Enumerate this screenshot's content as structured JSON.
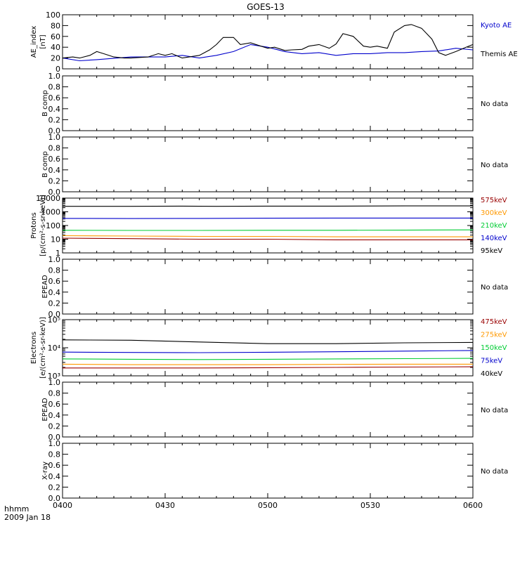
{
  "title": "GOES-13",
  "footer": {
    "label_hhmm": "hhmm",
    "date": "2009 Jan 18"
  },
  "colors": {
    "black": "#000000",
    "blue": "#0000cc",
    "green": "#00cc33",
    "orange": "#ff9900",
    "darkred": "#990000"
  },
  "chart_data": [
    {
      "type": "line",
      "id": "ae",
      "ylabel_1": "AE_index",
      "ylabel_2": "[nT]",
      "ylim": [
        0,
        100
      ],
      "yticks": [
        "0",
        "20",
        "40",
        "60",
        "80",
        "100"
      ],
      "yvalues": [
        0,
        20,
        40,
        60,
        80,
        100
      ],
      "legend_placement": "right",
      "series": [
        {
          "name": "Kyoto AE",
          "color": "#0000cc",
          "x": [
            0,
            5,
            10,
            20,
            30,
            35,
            40,
            45,
            50,
            55,
            60,
            65,
            70,
            75,
            80,
            85,
            90,
            95,
            100,
            105,
            110,
            115,
            120
          ],
          "y": [
            20,
            15,
            17,
            22,
            22,
            25,
            20,
            25,
            32,
            45,
            40,
            32,
            28,
            30,
            25,
            28,
            28,
            30,
            30,
            32,
            33,
            38,
            35
          ]
        },
        {
          "name": "Themis AE",
          "color": "#000000",
          "x": [
            0,
            3,
            5,
            8,
            10,
            12,
            15,
            18,
            20,
            25,
            28,
            30,
            32,
            35,
            37,
            40,
            43,
            45,
            47,
            50,
            52,
            55,
            58,
            60,
            62,
            65,
            67,
            70,
            72,
            75,
            78,
            80,
            82,
            85,
            88,
            90,
            92,
            95,
            97,
            100,
            102,
            105,
            108,
            110,
            112,
            115,
            118,
            120
          ],
          "y": [
            20,
            22,
            20,
            25,
            32,
            28,
            22,
            20,
            20,
            22,
            28,
            25,
            28,
            20,
            22,
            25,
            35,
            45,
            58,
            58,
            45,
            48,
            42,
            38,
            40,
            34,
            35,
            36,
            42,
            45,
            38,
            46,
            65,
            60,
            42,
            40,
            42,
            38,
            68,
            80,
            82,
            75,
            55,
            30,
            25,
            32,
            40,
            45
          ]
        }
      ]
    },
    {
      "type": "line",
      "id": "bcomp1",
      "ylabel_1": "B comp",
      "ylim": [
        0,
        1
      ],
      "yticks": [
        "0.0",
        "0.2",
        "0.4",
        "0.6",
        "0.8",
        "1.0"
      ],
      "yvalues": [
        0,
        0.2,
        0.4,
        0.6,
        0.8,
        1.0
      ],
      "nodata": "No data"
    },
    {
      "type": "line",
      "id": "bcomp2",
      "ylabel_1": "B comp",
      "ylim": [
        0,
        1
      ],
      "yticks": [
        "0.0",
        "0.2",
        "0.4",
        "0.6",
        "0.8",
        "1.0"
      ],
      "yvalues": [
        0,
        0.2,
        0.4,
        0.6,
        0.8,
        1.0
      ],
      "nodata": "No data"
    },
    {
      "type": "line",
      "id": "protons",
      "scale": "log",
      "ylabel_1": "Protons",
      "ylabel_2": "[p/(cm²-s-sr-keV)]",
      "ylim": [
        1,
        10000
      ],
      "yticks": [
        "1",
        "10",
        "100",
        "1000",
        "10000"
      ],
      "yvalues": [
        1,
        10,
        100,
        1000,
        10000
      ],
      "legend_placement": "right",
      "series": [
        {
          "name": "575keV",
          "color": "#990000",
          "x": [
            0,
            20,
            40,
            60,
            80,
            100,
            120
          ],
          "y": [
            12,
            11,
            10,
            10,
            9,
            9,
            9
          ]
        },
        {
          "name": "300keV",
          "color": "#ff9900",
          "x": [
            0,
            20,
            40,
            60,
            80,
            100,
            120
          ],
          "y": [
            18,
            17,
            16,
            16,
            15,
            15,
            15
          ]
        },
        {
          "name": "210keV",
          "color": "#00cc33",
          "x": [
            0,
            20,
            40,
            60,
            80,
            100,
            120
          ],
          "y": [
            45,
            44,
            44,
            45,
            45,
            46,
            48
          ]
        },
        {
          "name": "140keV",
          "color": "#0000cc",
          "x": [
            0,
            20,
            40,
            60,
            80,
            100,
            120
          ],
          "y": [
            330,
            320,
            330,
            340,
            350,
            350,
            350
          ]
        },
        {
          "name": "95keV",
          "color": "#000000",
          "x": [
            0,
            20,
            35,
            45,
            60,
            80,
            100,
            120
          ],
          "y": [
            2500,
            2500,
            2600,
            2500,
            2600,
            2600,
            2700,
            2700
          ]
        }
      ]
    },
    {
      "type": "line",
      "id": "epead1",
      "ylabel_1": "EPEAD",
      "ylim": [
        0,
        1
      ],
      "yticks": [
        "0.0",
        "0.2",
        "0.4",
        "0.6",
        "0.8",
        "1.0"
      ],
      "yvalues": [
        0,
        0.2,
        0.4,
        0.6,
        0.8,
        1.0
      ],
      "nodata": "No data"
    },
    {
      "type": "line",
      "id": "electrons",
      "scale": "log",
      "ylabel_1": "Electrons",
      "ylabel_2": "[e/(cm²-s-sr-keV)]",
      "ylim": [
        1000,
        100000
      ],
      "yticks": [
        "10³",
        "10⁴",
        "10⁵"
      ],
      "yvalues": [
        1000,
        10000,
        100000
      ],
      "legend_placement": "right",
      "series": [
        {
          "name": "475keV",
          "color": "#990000",
          "x": [
            0,
            20,
            40,
            60,
            80,
            100,
            120
          ],
          "y": [
            1900,
            1900,
            1900,
            1950,
            2000,
            2050,
            2100
          ]
        },
        {
          "name": "275keV",
          "color": "#ff9900",
          "x": [
            0,
            20,
            40,
            60,
            80,
            100,
            120
          ],
          "y": [
            2600,
            2500,
            2500,
            2500,
            2550,
            2600,
            2600
          ]
        },
        {
          "name": "150keV",
          "color": "#00cc33",
          "x": [
            0,
            20,
            40,
            60,
            80,
            100,
            120
          ],
          "y": [
            4000,
            3900,
            3800,
            3900,
            4000,
            4100,
            4200
          ]
        },
        {
          "name": "75keV",
          "color": "#0000cc",
          "x": [
            0,
            20,
            40,
            60,
            80,
            100,
            120
          ],
          "y": [
            7000,
            6800,
            6700,
            6900,
            7200,
            7600,
            8000
          ]
        },
        {
          "name": "40keV",
          "color": "#000000",
          "x": [
            0,
            20,
            40,
            60,
            80,
            100,
            120
          ],
          "y": [
            19000,
            18500,
            16000,
            14000,
            14000,
            15000,
            15500
          ]
        }
      ]
    },
    {
      "type": "line",
      "id": "epead2",
      "ylabel_1": "EPEAD",
      "ylim": [
        0,
        1
      ],
      "yticks": [
        "0.0",
        "0.2",
        "0.4",
        "0.6",
        "0.8",
        "1.0"
      ],
      "yvalues": [
        0,
        0.2,
        0.4,
        0.6,
        0.8,
        1.0
      ],
      "nodata": "No data"
    },
    {
      "type": "line",
      "id": "xray",
      "ylabel_1": "X-ray",
      "ylim": [
        0,
        1
      ],
      "yticks": [
        "0.0",
        "0.2",
        "0.4",
        "0.6",
        "0.8",
        "1.0"
      ],
      "yvalues": [
        0,
        0.2,
        0.4,
        0.6,
        0.8,
        1.0
      ],
      "nodata": "No data"
    }
  ],
  "xaxis": {
    "xlim": [
      0,
      120
    ],
    "ticks": [
      0,
      30,
      60,
      90,
      120
    ],
    "labels": [
      "0400",
      "0430",
      "0500",
      "0530",
      "0600"
    ]
  }
}
